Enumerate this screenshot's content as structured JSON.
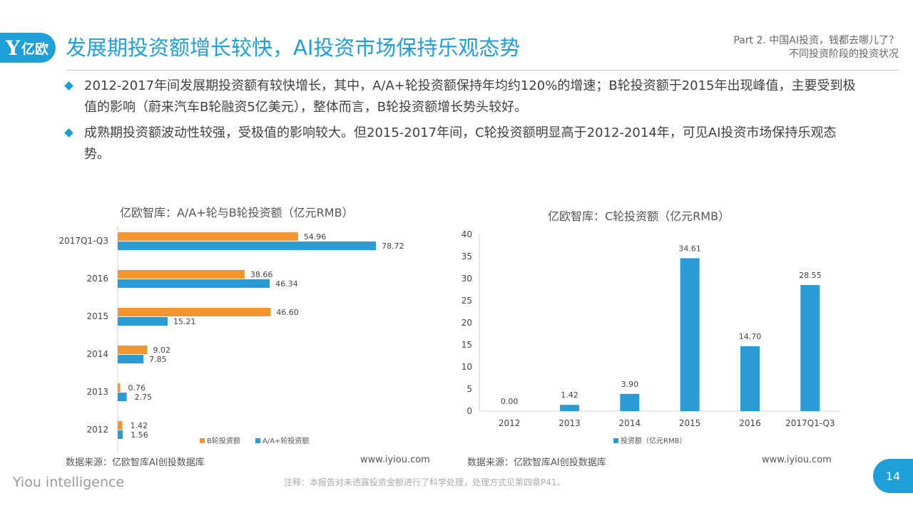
{
  "header": {
    "logo_letter": "Y",
    "logo_text": "亿欧",
    "title": "发展期投资额增长较快，AI投资市场保持乐观态势",
    "part_line1": "Part 2. 中国AI投资，钱都去哪儿了？",
    "part_line2": "不同投资阶段的投资状况"
  },
  "bullets": [
    "2012-2017年间发展期投资额有较快增长，其中，A/A+轮投资额保持年均约120%的增速；B轮投资额于2015年出现峰值，主要受到极值的影响（蔚来汽车B轮融资5亿美元），整体而言，B轮投资额增长势头较好。",
    "成熟期投资额波动性较强，受极值的影响较大。但2015-2017年间，C轮投资额明显高于2012-2014年，可见AI投资市场保持乐观态势。"
  ],
  "colors": {
    "accent": "#1f9fd8",
    "orange": "#f29430",
    "blue": "#2b9bd6"
  },
  "chart_data": [
    {
      "type": "bar",
      "orientation": "horizontal",
      "title": "亿欧智库：A/A+轮与B轮投资额（亿元RMB）",
      "categories": [
        "2017Q1-Q3",
        "2016",
        "2015",
        "2014",
        "2013",
        "2012"
      ],
      "series": [
        {
          "name": "B轮投资额",
          "color": "#f29430",
          "values": [
            54.96,
            38.66,
            46.6,
            9.02,
            0.76,
            1.42
          ]
        },
        {
          "name": "A/A+轮投资额",
          "color": "#2b9bd6",
          "values": [
            78.72,
            46.34,
            15.21,
            7.85,
            2.75,
            1.56
          ]
        }
      ],
      "xlim": [
        0,
        90
      ],
      "legend": "bottom"
    },
    {
      "type": "bar",
      "title": "亿欧智库：C轮投资额（亿元RMB）",
      "categories": [
        "2012",
        "2013",
        "2014",
        "2015",
        "2016",
        "2017Q1-Q3"
      ],
      "series": [
        {
          "name": "投资额（亿元RMB）",
          "color": "#2b9bd6",
          "values": [
            0.0,
            1.42,
            3.9,
            34.61,
            14.7,
            28.55
          ]
        }
      ],
      "yticks": [
        0,
        5,
        10,
        15,
        20,
        25,
        30,
        35,
        40
      ],
      "ylim": [
        0,
        40
      ],
      "legend": "bottom"
    }
  ],
  "footer": {
    "source": "数据来源：亿欧智库AI创投数据库",
    "url": "www.iyiou.com",
    "brand": "Yiou intelligence",
    "note": "注释：本报告对未透露投资金额进行了科学处理，处理方式见第四章P41。",
    "page": "14"
  }
}
